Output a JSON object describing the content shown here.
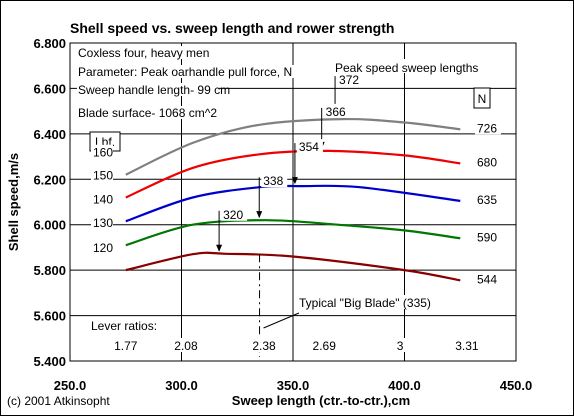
{
  "chart_data": {
    "type": "line",
    "title": "Shell speed vs. sweep length and rower strength",
    "xlabel": "Sweep length (ctr.-to-ctr.),cm",
    "ylabel": "Shell speed,m/s",
    "xlim": [
      250,
      450
    ],
    "ylim": [
      5.4,
      6.8
    ],
    "grid": true,
    "x_ticks": [
      "250.0",
      "300.0",
      "350.0",
      "400.0",
      "450.0"
    ],
    "y_ticks": [
      "5.400",
      "5.600",
      "5.800",
      "6.000",
      "6.200",
      "6.400",
      "6.600",
      "6.800"
    ],
    "notes": [
      "Coxless four, heavy men",
      "Parameter: Peak oarhandle pull force, N",
      "Sweep handle length- 99 cm",
      "Blade surface- 1068 cm^2"
    ],
    "lbf_label": "Lbf.",
    "n_label": "N",
    "peak_label": "Peak speed sweep lengths",
    "series": [
      {
        "color": "#808080",
        "lbf": "160",
        "newtons": "726",
        "peak_x": 372,
        "peak_label": "372",
        "points": [
          [
            275,
            6.22
          ],
          [
            305,
            6.36
          ],
          [
            335,
            6.44
          ],
          [
            372,
            6.465
          ],
          [
            400,
            6.45
          ],
          [
            425,
            6.42
          ]
        ]
      },
      {
        "color": "#ee0000",
        "lbf": "150",
        "newtons": "680",
        "peak_x": 366,
        "peak_label": "366",
        "points": [
          [
            275,
            6.12
          ],
          [
            305,
            6.25
          ],
          [
            335,
            6.31
          ],
          [
            366,
            6.325
          ],
          [
            400,
            6.305
          ],
          [
            425,
            6.27
          ]
        ]
      },
      {
        "color": "#0000cc",
        "lbf": "140",
        "newtons": "635",
        "peak_x": 354,
        "peak_label": "354",
        "points": [
          [
            275,
            6.015
          ],
          [
            305,
            6.12
          ],
          [
            335,
            6.165
          ],
          [
            354,
            6.17
          ],
          [
            380,
            6.165
          ],
          [
            425,
            6.105
          ]
        ]
      },
      {
        "color": "#007700",
        "lbf": "130",
        "newtons": "590",
        "peak_x": 338,
        "peak_label": "338",
        "points": [
          [
            275,
            5.91
          ],
          [
            305,
            6.0
          ],
          [
            338,
            6.02
          ],
          [
            370,
            6.0
          ],
          [
            400,
            5.975
          ],
          [
            425,
            5.94
          ]
        ]
      },
      {
        "color": "#880000",
        "lbf": "120",
        "newtons": "544",
        "peak_x": 320,
        "peak_label": "320",
        "points": [
          [
            275,
            5.8
          ],
          [
            305,
            5.87
          ],
          [
            320,
            5.872
          ],
          [
            350,
            5.86
          ],
          [
            400,
            5.8
          ],
          [
            425,
            5.755
          ]
        ]
      }
    ],
    "big_blade": {
      "x": 335,
      "label": "Typical \"Big Blade\" (335)"
    },
    "lever_ratios": {
      "label": "Lever ratios:",
      "values": [
        {
          "x": 275,
          "label": "1.77"
        },
        {
          "x": 302,
          "label": "2.08"
        },
        {
          "x": 337,
          "label": "2.38"
        },
        {
          "x": 364,
          "label": "2.69"
        },
        {
          "x": 398,
          "label": "3"
        },
        {
          "x": 428,
          "label": "3.31"
        }
      ]
    }
  },
  "copyright": "(c) 2001 Atkinsopht"
}
